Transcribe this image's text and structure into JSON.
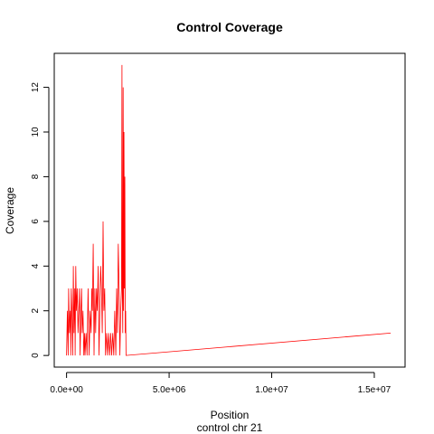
{
  "chart_data": {
    "type": "line",
    "title": "Control Coverage",
    "xlabel": "Position",
    "ylabel": "Coverage",
    "subtitle": "control chr 21",
    "xlim": [
      -600000,
      16500000
    ],
    "ylim": [
      -0.52,
      13.52
    ],
    "x_ticks": [
      0,
      5000000,
      10000000,
      15000000
    ],
    "x_tick_labels": [
      "0.0e+00",
      "5.0e+06",
      "1.0e+07",
      "1.5e+07"
    ],
    "y_ticks": [
      0,
      2,
      4,
      6,
      8,
      10,
      12
    ],
    "y_tick_labels": [
      "0",
      "2",
      "4",
      "6",
      "8",
      "10",
      "12"
    ],
    "series_color": "#ff0000",
    "grid": false,
    "legend": "none",
    "series": [
      {
        "x": [
          0,
          40000,
          80000,
          100000,
          140000,
          180000,
          200000,
          230000,
          260000,
          300000,
          330000,
          360000,
          400000,
          420000,
          450000,
          480000,
          520000,
          560000,
          600000,
          630000,
          660000,
          700000,
          730000,
          760000,
          800000,
          840000,
          880000,
          900000,
          950000,
          1000000,
          1050000,
          1100000,
          1150000,
          1200000,
          1230000,
          1260000,
          1300000,
          1340000,
          1380000,
          1420000,
          1460000,
          1500000,
          1540000,
          1580000,
          1620000,
          1660000,
          1700000,
          1740000,
          1780000,
          1820000,
          1860000,
          1900000,
          1950000,
          2000000,
          2050000,
          2100000,
          2150000,
          2200000,
          2250000,
          2300000,
          2350000,
          2400000,
          2440000,
          2480000,
          2520000,
          2560000,
          2600000,
          2640000,
          2680000,
          2700000,
          2720000,
          2740000,
          2760000,
          2780000,
          2800000,
          2820000,
          2840000,
          2860000,
          2880000,
          2900000,
          15800000
        ],
        "y": [
          0,
          2,
          0,
          3,
          1,
          2,
          0,
          3,
          2,
          0,
          4,
          1,
          3,
          0,
          4,
          2,
          3,
          1,
          2,
          3,
          0,
          2,
          3,
          1,
          2,
          0,
          1,
          0,
          1,
          0,
          3,
          0,
          2,
          1,
          3,
          2,
          5,
          0,
          3,
          1,
          3,
          2,
          4,
          0,
          2,
          4,
          3,
          1,
          6,
          2,
          3,
          0,
          1,
          0,
          1,
          0,
          1,
          0,
          1,
          0,
          2,
          0,
          3,
          1,
          5,
          3,
          0,
          2,
          3,
          13,
          3,
          1,
          12,
          2,
          10,
          3,
          8,
          1,
          2,
          0,
          1
        ]
      }
    ]
  }
}
